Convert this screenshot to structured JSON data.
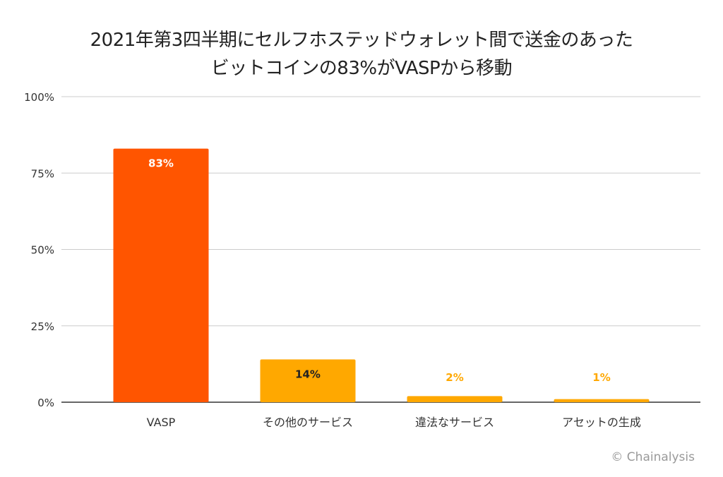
{
  "chart_data": {
    "type": "bar",
    "title_lines": [
      "2021年第3四半期にセルフホステッドウォレット間で送金のあった",
      "ビットコインの83%がVASPから移動"
    ],
    "categories": [
      "VASP",
      "その他のサービス",
      "違法なサービス",
      "アセットの生成"
    ],
    "values": [
      83,
      14,
      2,
      1
    ],
    "data_labels": [
      "83%",
      "14%",
      "2%",
      "1%"
    ],
    "bar_colors": [
      "#FF5500",
      "#FFA800",
      "#FFA800",
      "#FFA800"
    ],
    "label_colors": [
      "#FFFFFF",
      "#222222",
      "#FFA800",
      "#FFA800"
    ],
    "ylim": [
      0,
      100
    ],
    "yticks": [
      0,
      25,
      50,
      75,
      100
    ],
    "ytick_labels": [
      "0%",
      "25%",
      "50%",
      "75%",
      "100%"
    ],
    "xlabel": "",
    "ylabel": "",
    "grid": true,
    "legend": "none"
  },
  "credit": "© Chainalysis"
}
